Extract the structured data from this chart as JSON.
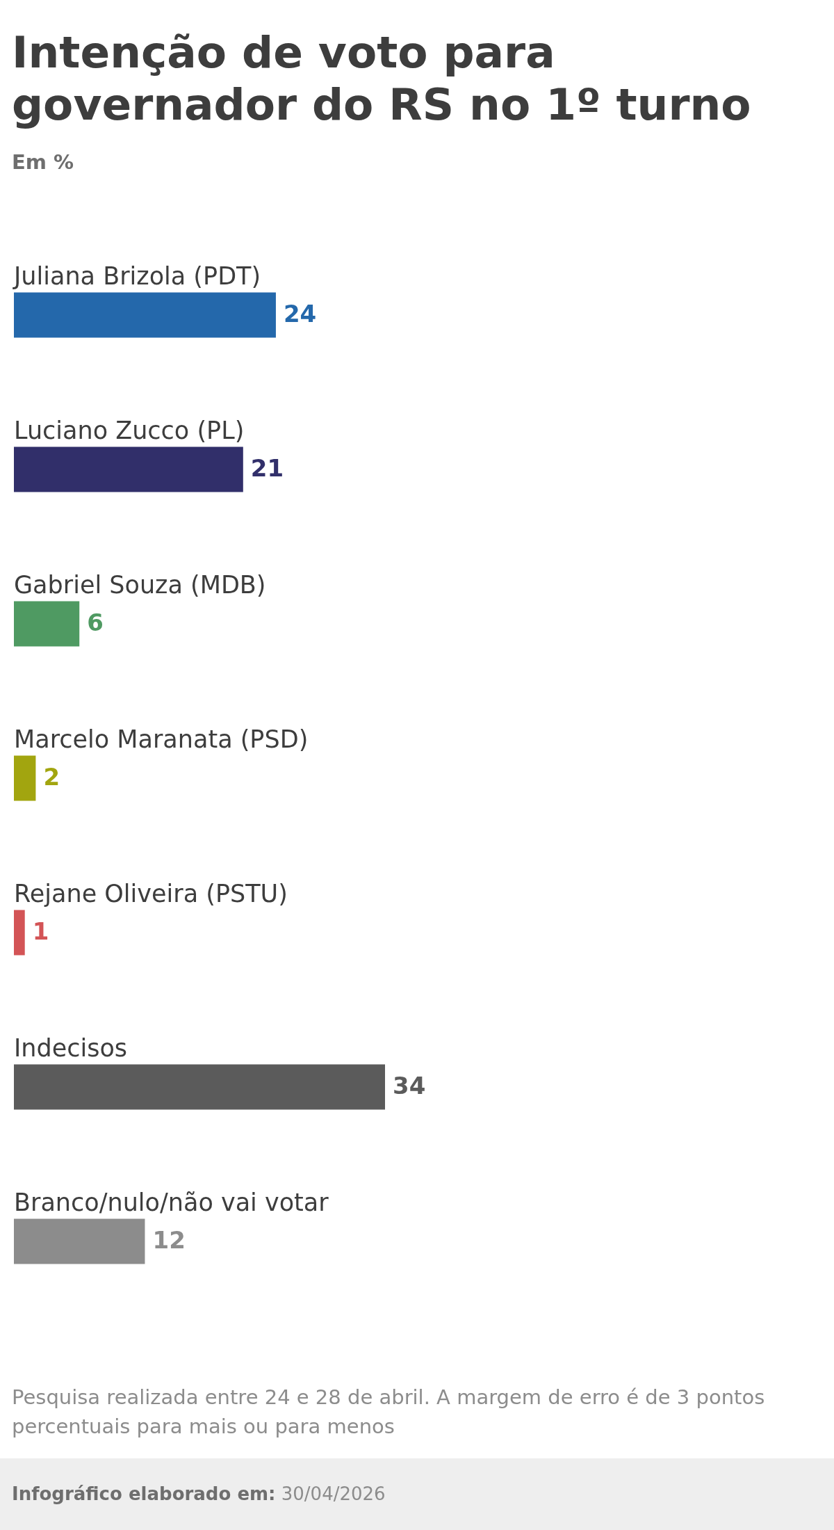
{
  "chart_data": {
    "type": "bar",
    "orientation": "horizontal",
    "title": "Intenção de voto para governador do RS no 1º turno",
    "subtitle": "Em %",
    "categories": [
      "Juliana Brizola (PDT)",
      "Luciano Zucco (PL)",
      "Gabriel Souza (MDB)",
      "Marcelo Maranata (PSD)",
      "Rejane Oliveira (PSTU)",
      "Indecisos",
      "Branco/nulo/não vai votar"
    ],
    "values": [
      24,
      21,
      6,
      2,
      1,
      34,
      12
    ],
    "colors": [
      "#2468ab",
      "#312f6a",
      "#4f9a62",
      "#a2a50f",
      "#d35456",
      "#5b5b5b",
      "#8c8c8c"
    ],
    "data_labels": true,
    "annotations": [
      "Pesquisa realizada entre 24 e 28 de abril. A margem de erro é de 3 pontos percentuais para mais ou para menos",
      "Infográfico elaborado em: 30/04/2026"
    ]
  }
}
